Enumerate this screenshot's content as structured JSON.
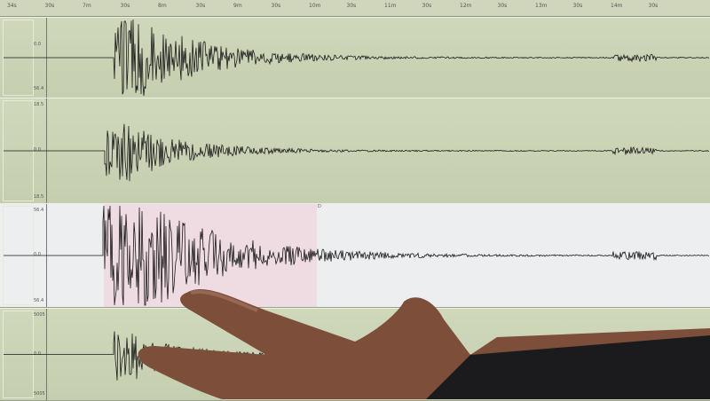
{
  "time_axis": {
    "labels": [
      "34s",
      "30s",
      "7m",
      "30s",
      "8m",
      "30s",
      "9m",
      "30s",
      "10m",
      "30s",
      "11m",
      "30s",
      "12m",
      "30s",
      "13m",
      "30s",
      "14m",
      "30s"
    ]
  },
  "panels": [
    {
      "id": "trace-1",
      "style": "green",
      "scale_labels": [
        "0.0",
        "56.4"
      ]
    },
    {
      "id": "trace-2",
      "style": "green",
      "scale_labels": [
        "18.5",
        "0.0",
        "18.5"
      ]
    },
    {
      "id": "trace-3",
      "style": "white",
      "marker": "D",
      "scale_labels": [
        "56.4",
        "0.0",
        "56.4"
      ]
    },
    {
      "id": "trace-4",
      "style": "green",
      "scale_labels": [
        "5005",
        "0.0",
        "5005"
      ]
    }
  ],
  "colors": {
    "screen_green": "#c9d1b3",
    "trace": "#1a1a1a",
    "pick_highlight": "#efdbe2",
    "skin": "#8a5a44"
  }
}
